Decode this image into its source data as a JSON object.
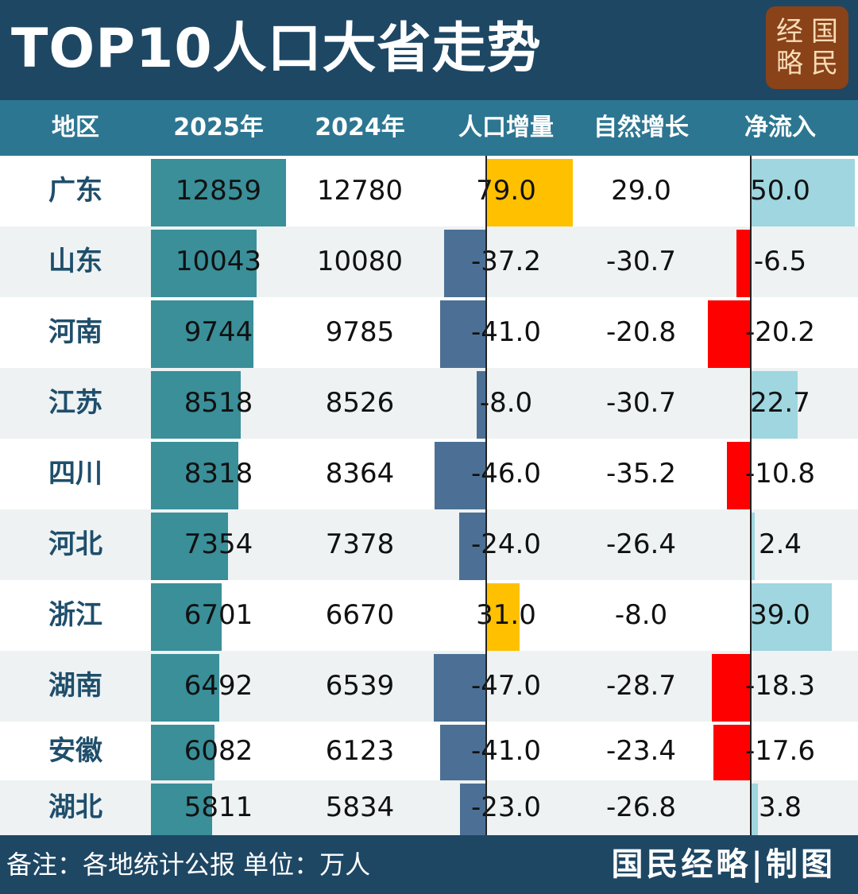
{
  "title": "TOP10人口大省走势",
  "seal": {
    "chars": [
      "经",
      "国",
      "略",
      "民"
    ]
  },
  "headers": [
    "地区",
    "2025年",
    "2024年",
    "人口增量",
    "自然增长",
    "净流入"
  ],
  "colors": {
    "title_bg": "#1e4764",
    "header_bg": "#2d7691",
    "bar_2025": "#3a8f99",
    "increase_positive": "#ffc000",
    "increase_negative": "#4c7095",
    "inflow_positive": "#9fd6df",
    "inflow_negative": "#ff0000",
    "row_alt": "#eef2f3",
    "region_text": "#1f4e6b"
  },
  "chart_data": {
    "type": "table",
    "title": "TOP10人口大省走势",
    "columns": [
      "地区",
      "2025年",
      "2024年",
      "人口增量",
      "自然增长",
      "净流入"
    ],
    "unit": "万人",
    "rows": [
      {
        "region": "广东",
        "y2025": "12859",
        "y2024": "12780",
        "increase": "79.0",
        "natural": "29.0",
        "inflow": "50.0"
      },
      {
        "region": "山东",
        "y2025": "10043",
        "y2024": "10080",
        "increase": "-37.2",
        "natural": "-30.7",
        "inflow": "-6.5"
      },
      {
        "region": "河南",
        "y2025": "9744",
        "y2024": "9785",
        "increase": "-41.0",
        "natural": "-20.8",
        "inflow": "-20.2"
      },
      {
        "region": "江苏",
        "y2025": "8518",
        "y2024": "8526",
        "increase": "-8.0",
        "natural": "-30.7",
        "inflow": "22.7"
      },
      {
        "region": "四川",
        "y2025": "8318",
        "y2024": "8364",
        "increase": "-46.0",
        "natural": "-35.2",
        "inflow": "-10.8"
      },
      {
        "region": "河北",
        "y2025": "7354",
        "y2024": "7378",
        "increase": "-24.0",
        "natural": "-26.4",
        "inflow": "2.4"
      },
      {
        "region": "浙江",
        "y2025": "6701",
        "y2024": "6670",
        "increase": "31.0",
        "natural": "-8.0",
        "inflow": "39.0"
      },
      {
        "region": "湖南",
        "y2025": "6492",
        "y2024": "6539",
        "increase": "-47.0",
        "natural": "-28.7",
        "inflow": "-18.3"
      },
      {
        "region": "安徽",
        "y2025": "6082",
        "y2024": "6123",
        "increase": "-41.0",
        "natural": "-23.4",
        "inflow": "-17.6"
      },
      {
        "region": "湖北",
        "y2025": "5811",
        "y2024": "5834",
        "increase": "-23.0",
        "natural": "-26.8",
        "inflow": "3.8"
      }
    ]
  },
  "footer": {
    "note": "备注：各地统计公报  单位：万人",
    "brand": "国民经略|制图"
  },
  "watermark": [
    "国民经略",
    "国民经略"
  ]
}
